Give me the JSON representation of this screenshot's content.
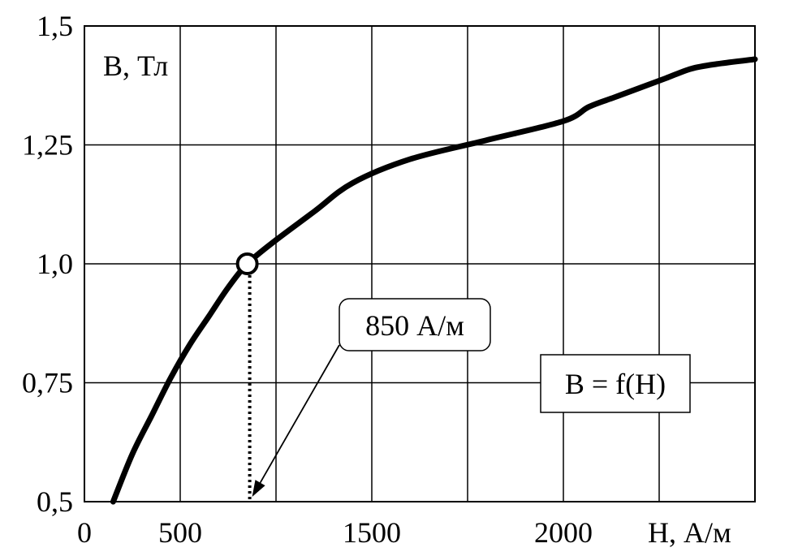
{
  "chart_data": {
    "type": "line",
    "title": "",
    "ylabel": "B, Тл",
    "xlabel": "H, А/м",
    "x_ticks": [
      {
        "value": 0,
        "label": "0"
      },
      {
        "value": 500,
        "label": "500"
      },
      {
        "value": 1500,
        "label": "1500"
      },
      {
        "value": 2000,
        "label": "2000"
      }
    ],
    "y_ticks": [
      {
        "value": 0.5,
        "label": "0,5"
      },
      {
        "value": 0.75,
        "label": "0,75"
      },
      {
        "value": 1.0,
        "label": "1,0"
      },
      {
        "value": 1.25,
        "label": "1,25"
      },
      {
        "value": 1.5,
        "label": "1,5"
      }
    ],
    "xlim": [
      0,
      3500
    ],
    "ylim": [
      0,
      1.5
    ],
    "grid": true,
    "series": [
      {
        "name": "B = f(H)",
        "x": [
          150,
          250,
          350,
          450,
          550,
          650,
          750,
          850,
          1000,
          1200,
          1400,
          1600,
          1800,
          2000,
          2200,
          2400,
          2600,
          2800,
          3000,
          3200,
          3500
        ],
        "y": [
          0.5,
          0.6,
          0.68,
          0.76,
          0.83,
          0.89,
          0.95,
          1.0,
          1.05,
          1.11,
          1.17,
          1.22,
          1.26,
          1.3,
          1.33,
          1.35,
          1.37,
          1.39,
          1.41,
          1.42,
          1.43
        ]
      }
    ],
    "marker": {
      "x": 850,
      "y": 1.0
    },
    "annotations": [
      {
        "text": "850 А/м",
        "target_x": 850,
        "target_y": 0.5
      },
      {
        "text": "B = f(H)"
      }
    ]
  }
}
